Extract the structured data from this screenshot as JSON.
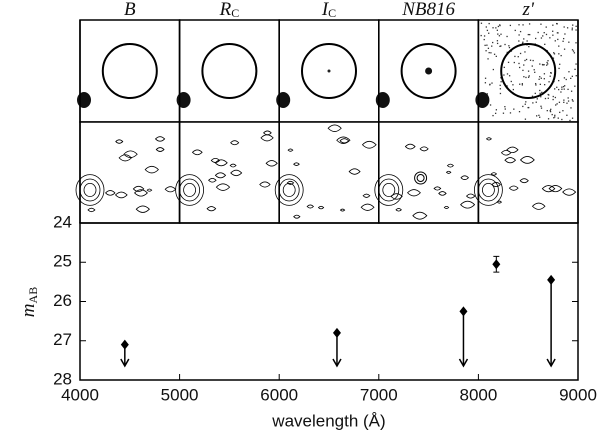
{
  "chart_data": {
    "type": "scatter",
    "bands": [
      {
        "name": "B"
      },
      {
        "name": "R",
        "sub": "C"
      },
      {
        "name": "I",
        "sub": "C"
      },
      {
        "name": "NB816"
      },
      {
        "name": "z'"
      }
    ],
    "x_label": "wavelength (Å)",
    "y_label": "m",
    "y_label_sub": "AB",
    "xlim": [
      4000,
      9000
    ],
    "xticks": [
      4000,
      5000,
      6000,
      7000,
      8000,
      9000
    ],
    "ylim": [
      24,
      28
    ],
    "yticks": [
      24,
      25,
      26,
      27,
      28
    ],
    "y_inverted": true,
    "series": [
      {
        "color": "#000000",
        "x": [
          4450,
          6580,
          7850,
          8180,
          8730
        ],
        "values": [
          27.1,
          26.8,
          26.25,
          25.05,
          25.45
        ],
        "errors": [
          null,
          null,
          null,
          0.2,
          null
        ],
        "upper_limit": [
          true,
          true,
          true,
          false,
          true
        ]
      }
    ]
  }
}
